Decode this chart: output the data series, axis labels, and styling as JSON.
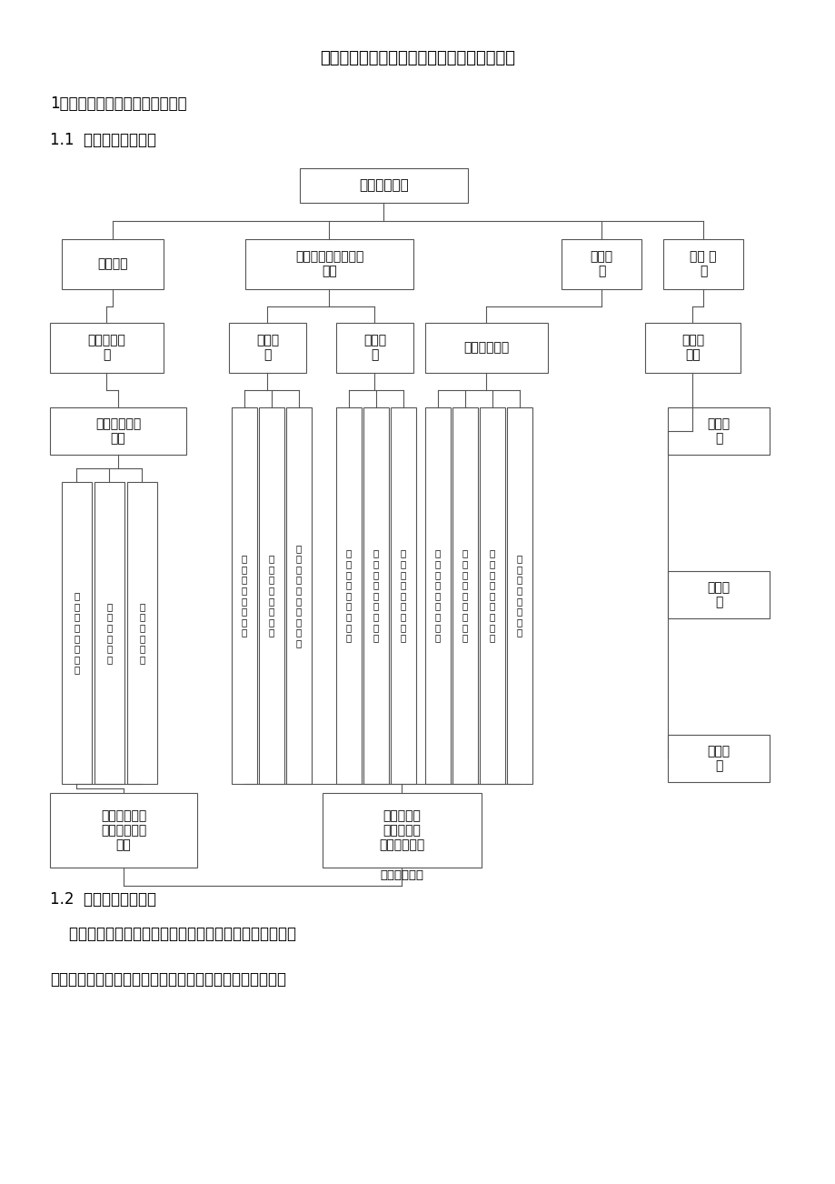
{
  "title": "高速公路互通立交改建工程安全文明施工措施",
  "heading1": "1、安全生产管理体系及保证措施",
  "heading2": "1.1  安全生产管理体系",
  "heading3": "1.2  安全生产保证措施",
  "footer_text1": "    建立健全各项安全生产的管理机构和安全生产管理制度，",
  "footer_text2": "制定切合实际的安全管理方案和行之有效的安全技术措施，",
  "xian_an_mubiao": "实现安全目标",
  "bg_color": "#ffffff",
  "text_color": "#000000",
  "box_edge_color": "#555555",
  "line_color": "#555555"
}
